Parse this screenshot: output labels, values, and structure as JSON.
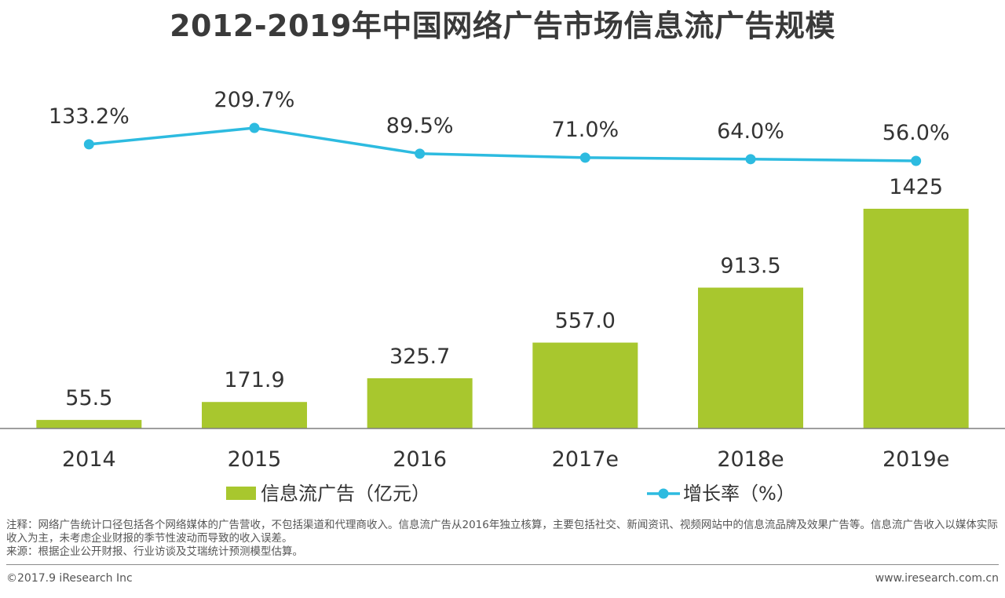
{
  "title": "2012-2019年中国网络广告市场信息流广告规模",
  "colors": {
    "bar": "#a8c72e",
    "line": "#2dbbe0",
    "axis": "#7f7f7f",
    "text": "#333333"
  },
  "chart_data": {
    "type": "bar",
    "categories": [
      "2014",
      "2015",
      "2016",
      "2017e",
      "2018e",
      "2019e"
    ],
    "series": [
      {
        "name": "信息流广告（亿元）",
        "type": "bar",
        "values": [
          55.5,
          171.9,
          325.7,
          557.0,
          913.5,
          1425
        ],
        "labels": [
          "55.5",
          "171.9",
          "325.7",
          "557.0",
          "913.5",
          "1425"
        ]
      },
      {
        "name": "增长率（%）",
        "type": "line",
        "values": [
          133.2,
          209.7,
          89.5,
          71.0,
          64.0,
          56.0
        ],
        "labels": [
          "133.2%",
          "209.7%",
          "89.5%",
          "71.0%",
          "64.0%",
          "56.0%"
        ]
      }
    ],
    "legend_position": "bottom",
    "grid": false
  },
  "notes": {
    "line1": "注释：网络广告统计口径包括各个网络媒体的广告营收，不包括渠道和代理商收入。信息流广告从2016年独立核算，主要包括社交、新闻资讯、视频网站中的信息流品牌及效果广告等。信息流广告收入以媒体实际收入为主，未考虑企业财报的季节性波动而导致的收入误差。",
    "line2": "来源：根据企业公开财报、行业访谈及艾瑞统计预测模型估算。"
  },
  "footer": {
    "copyright": "©2017.9 iResearch Inc",
    "website": "www.iresearch.com.cn"
  }
}
